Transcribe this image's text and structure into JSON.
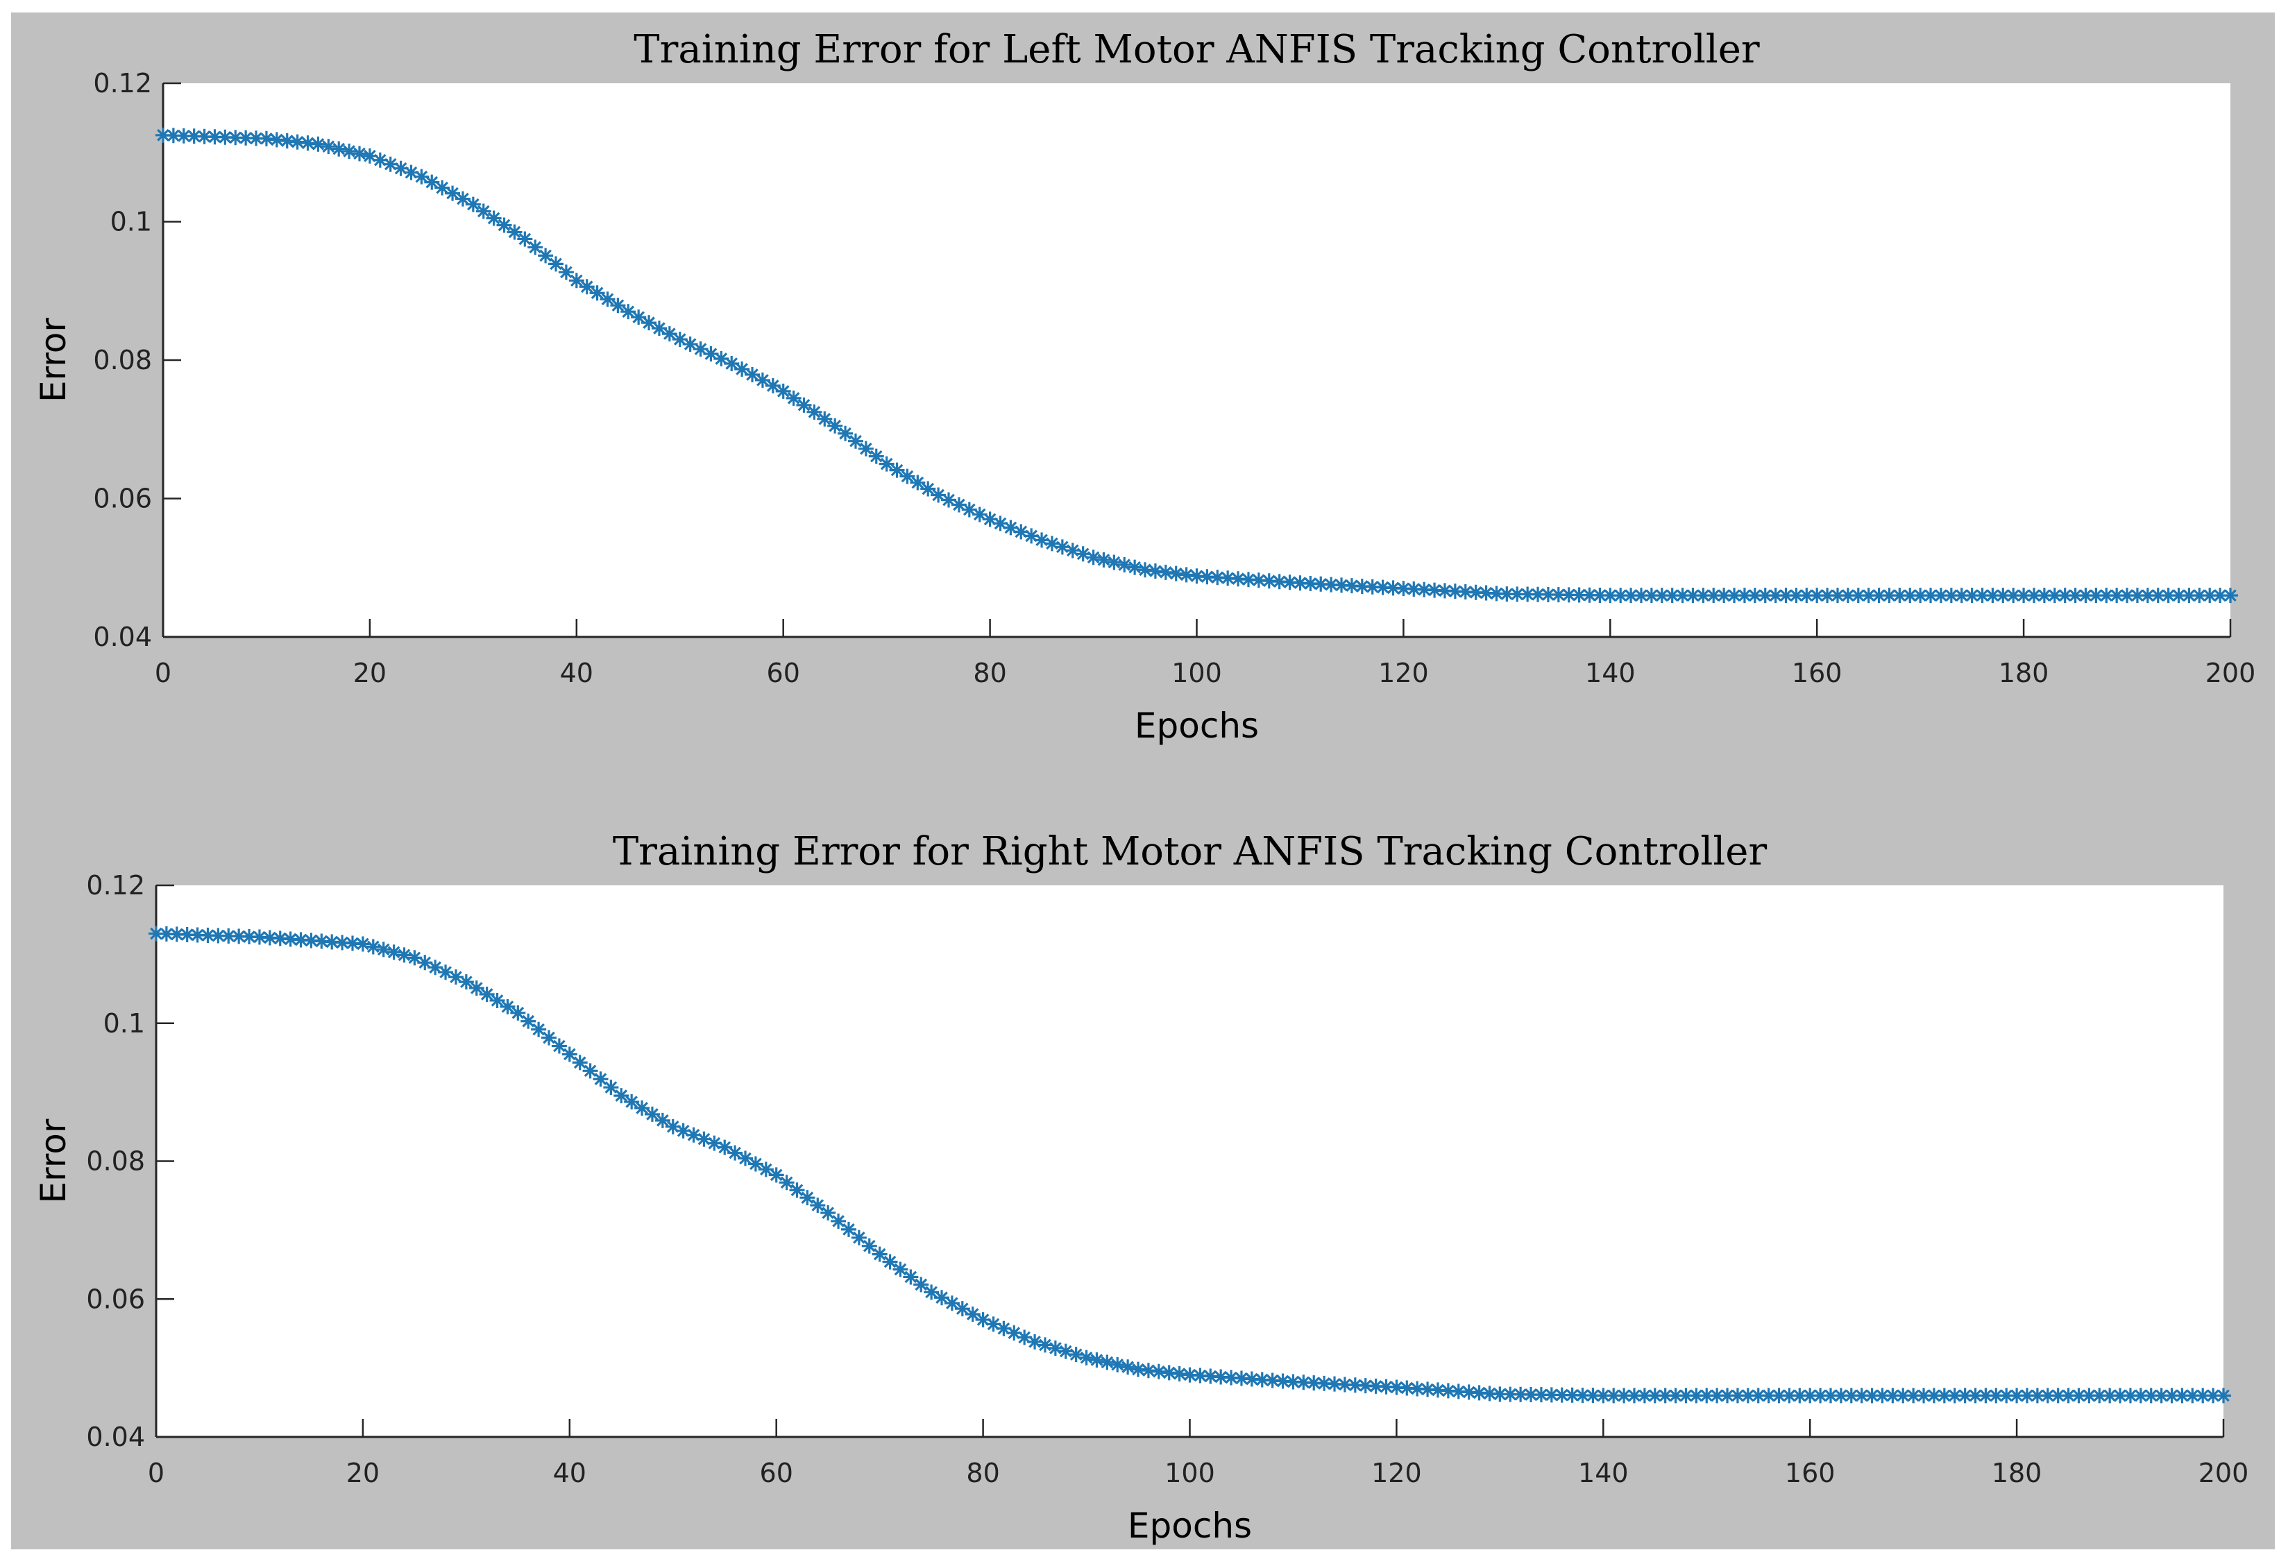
{
  "chart_data": [
    {
      "type": "scatter",
      "title": "Training Error for Left Motor ANFIS Tracking Controller",
      "xlabel": "Epochs",
      "ylabel": "Error",
      "xlim": [
        0,
        200
      ],
      "ylim": [
        0.04,
        0.12
      ],
      "xticks": [
        "0",
        "20",
        "40",
        "60",
        "80",
        "100",
        "120",
        "140",
        "160",
        "180",
        "200"
      ],
      "yticks": [
        "0.04",
        "0.06",
        "0.08",
        "0.1",
        "0.12"
      ],
      "grid": false,
      "marker": "asterisk",
      "series_color": "#1f77b4",
      "series": [
        {
          "points": [
            [
              0,
              0.1125
            ],
            [
              10,
              0.112
            ],
            [
              15,
              0.1112
            ],
            [
              20,
              0.1095
            ],
            [
              25,
              0.1065
            ],
            [
              30,
              0.1025
            ],
            [
              35,
              0.0975
            ],
            [
              40,
              0.0915
            ],
            [
              45,
              0.087
            ],
            [
              50,
              0.083
            ],
            [
              55,
              0.0795
            ],
            [
              60,
              0.0755
            ],
            [
              65,
              0.0705
            ],
            [
              70,
              0.065
            ],
            [
              75,
              0.0605
            ],
            [
              80,
              0.057
            ],
            [
              85,
              0.054
            ],
            [
              90,
              0.0515
            ],
            [
              95,
              0.0497
            ],
            [
              100,
              0.0488
            ],
            [
              110,
              0.0478
            ],
            [
              120,
              0.047
            ],
            [
              130,
              0.0462
            ],
            [
              140,
              0.046
            ],
            [
              200,
              0.046
            ]
          ]
        }
      ]
    },
    {
      "type": "scatter",
      "title": "Training Error for Right Motor ANFIS Tracking Controller",
      "xlabel": "Epochs",
      "ylabel": "Error",
      "xlim": [
        0,
        200
      ],
      "ylim": [
        0.04,
        0.12
      ],
      "xticks": [
        "0",
        "20",
        "40",
        "60",
        "80",
        "100",
        "120",
        "140",
        "160",
        "180",
        "200"
      ],
      "yticks": [
        "0.04",
        "0.06",
        "0.08",
        "0.1",
        "0.12"
      ],
      "grid": false,
      "marker": "asterisk",
      "series_color": "#1f77b4",
      "series": [
        {
          "points": [
            [
              0,
              0.113
            ],
            [
              10,
              0.1125
            ],
            [
              15,
              0.112
            ],
            [
              20,
              0.1115
            ],
            [
              25,
              0.1095
            ],
            [
              30,
              0.106
            ],
            [
              35,
              0.1015
            ],
            [
              40,
              0.0955
            ],
            [
              45,
              0.0895
            ],
            [
              50,
              0.085
            ],
            [
              55,
              0.082
            ],
            [
              60,
              0.078
            ],
            [
              65,
              0.0725
            ],
            [
              70,
              0.0665
            ],
            [
              75,
              0.061
            ],
            [
              80,
              0.057
            ],
            [
              85,
              0.0538
            ],
            [
              90,
              0.0515
            ],
            [
              95,
              0.0498
            ],
            [
              100,
              0.049
            ],
            [
              110,
              0.048
            ],
            [
              120,
              0.0472
            ],
            [
              130,
              0.0462
            ],
            [
              140,
              0.046
            ],
            [
              200,
              0.046
            ]
          ]
        }
      ]
    }
  ]
}
